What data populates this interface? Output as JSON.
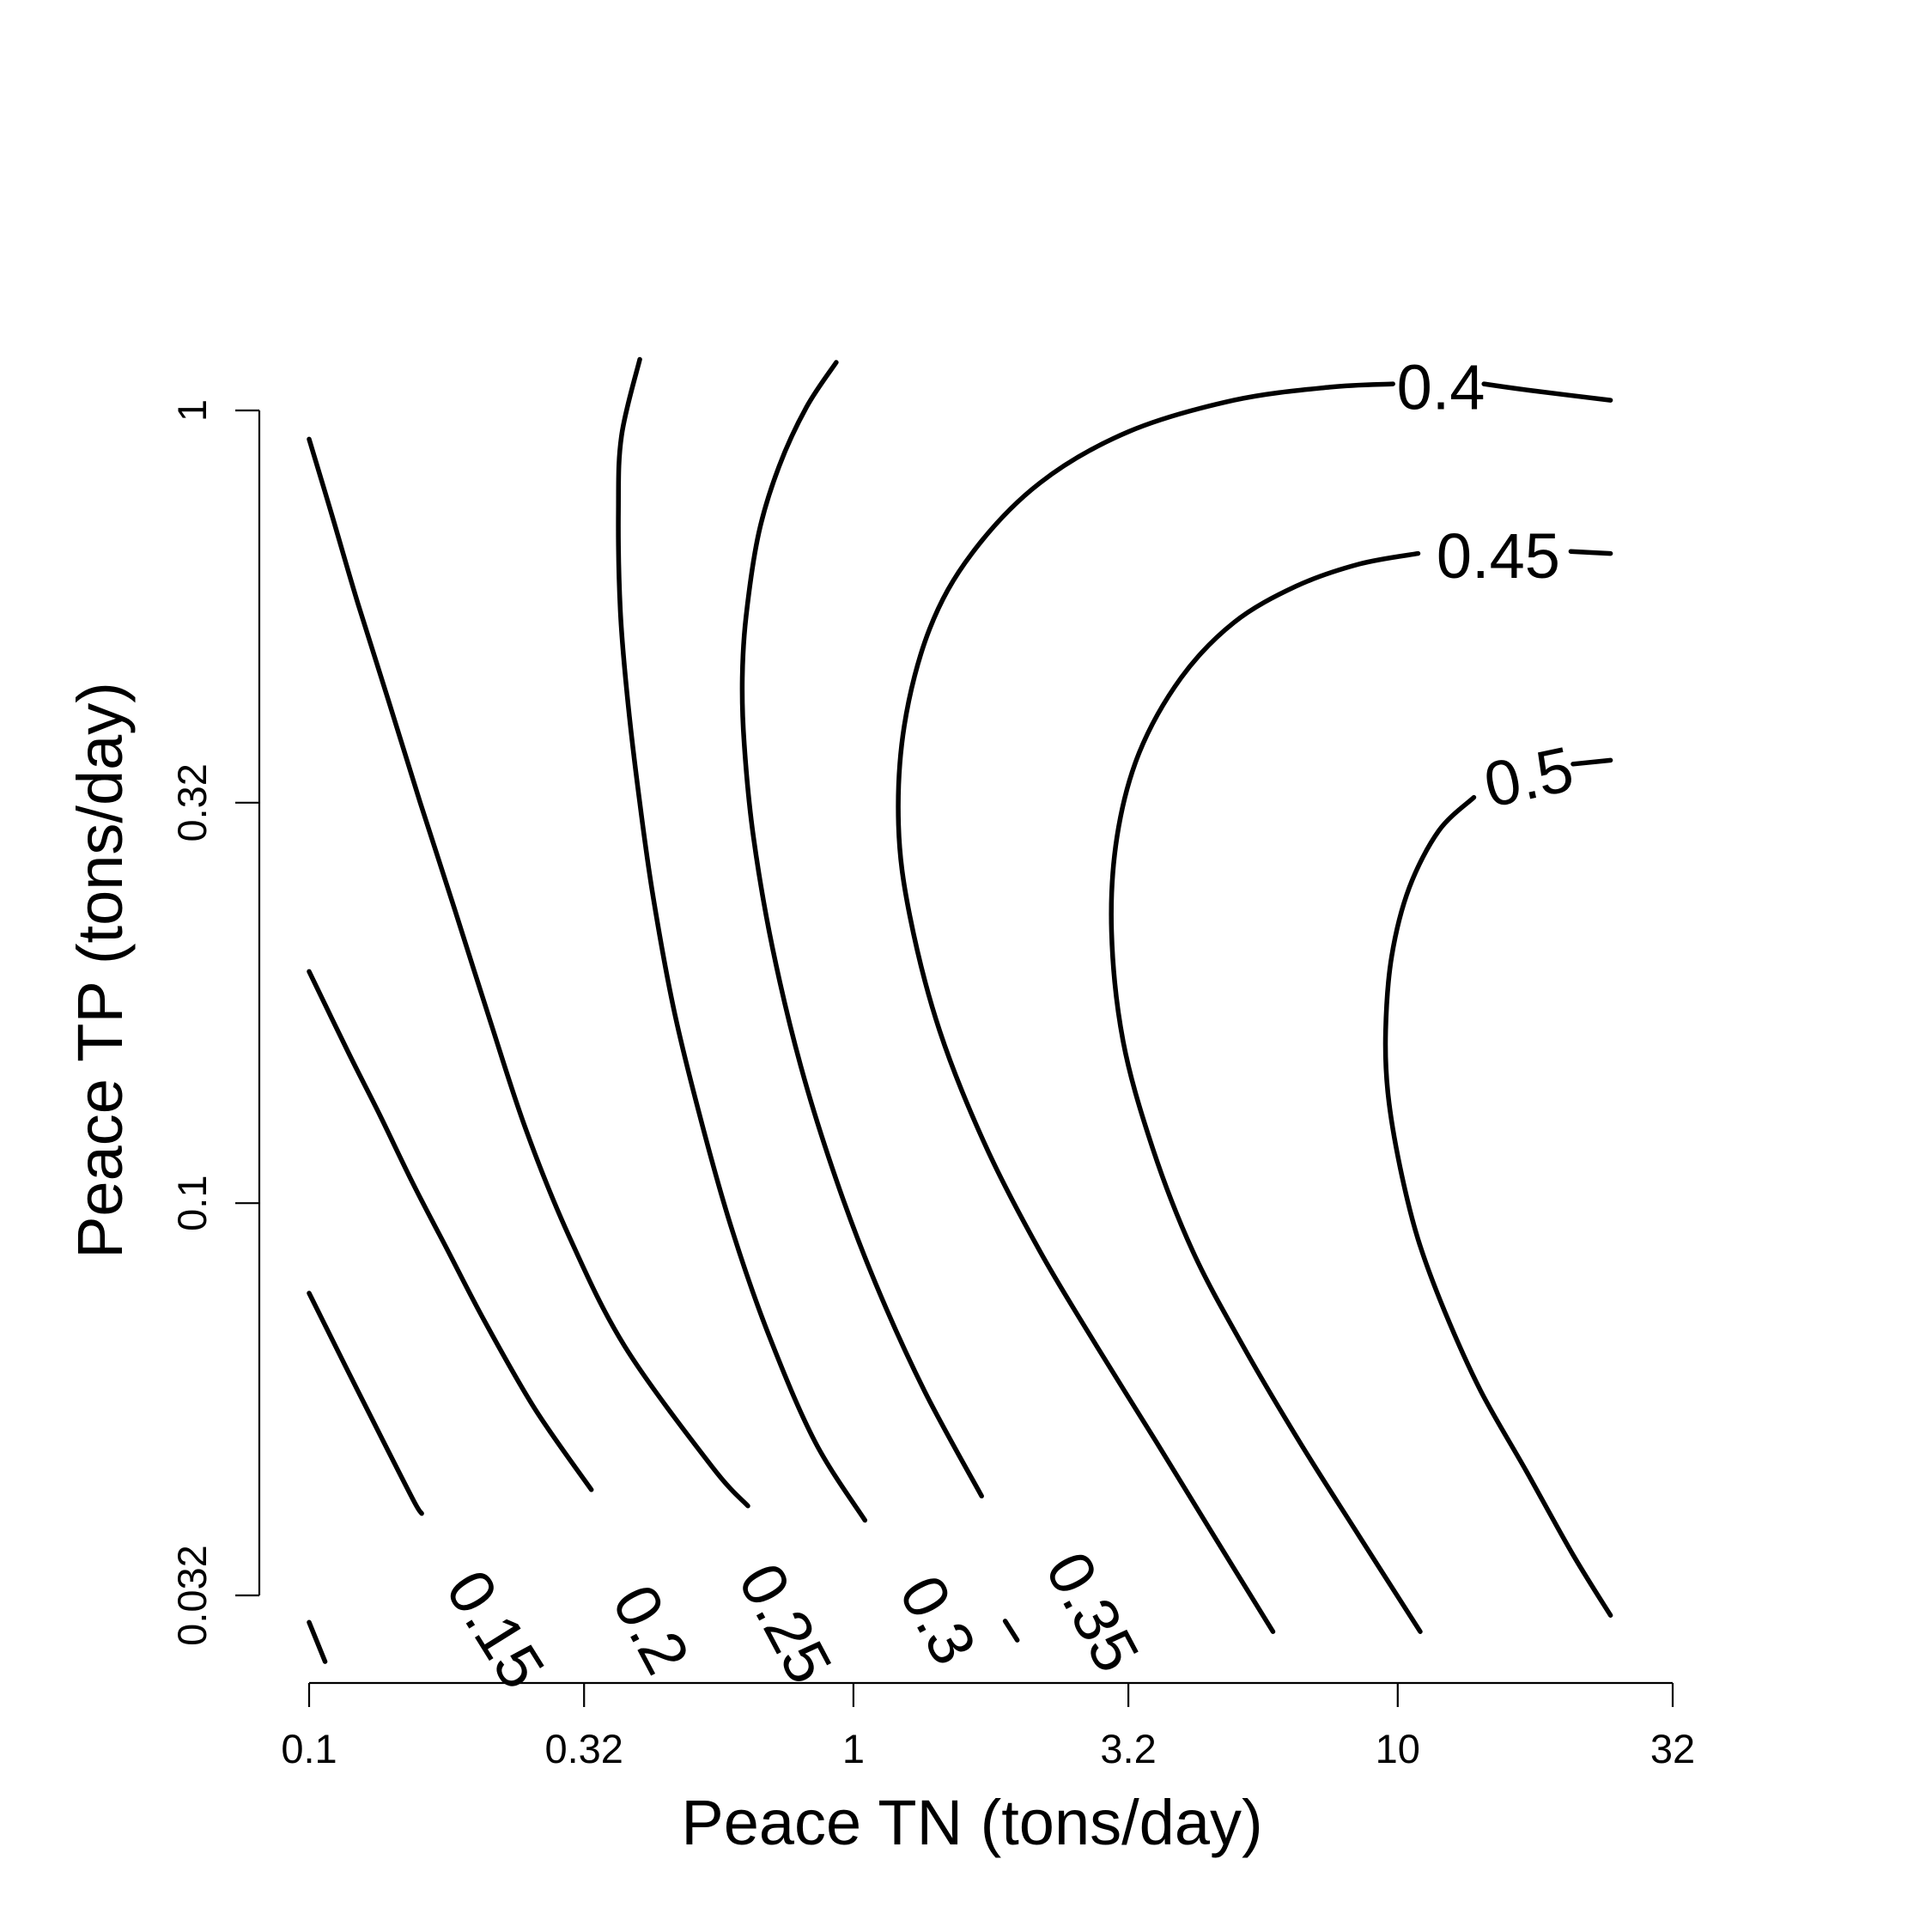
{
  "chart_data": {
    "type": "contour",
    "title": "",
    "xlabel": "Peace TN (tons/day)",
    "ylabel": "Peace TP (tons/day)",
    "x_scale": "log10",
    "y_scale": "log10",
    "xlim": [
      0.1,
      32
    ],
    "ylim": [
      0.032,
      1
    ],
    "x_ticks": [
      {
        "value": 0.1,
        "label": "0.1"
      },
      {
        "value": 0.32,
        "label": "0.32"
      },
      {
        "value": 1,
        "label": "1"
      },
      {
        "value": 3.2,
        "label": "3.2"
      },
      {
        "value": 10,
        "label": "10"
      },
      {
        "value": 32,
        "label": "32"
      }
    ],
    "y_ticks": [
      {
        "value": 0.032,
        "label": "0.032"
      },
      {
        "value": 0.1,
        "label": "0.1"
      },
      {
        "value": 0.32,
        "label": "0.32"
      },
      {
        "value": 1,
        "label": "1"
      }
    ],
    "line_color": "#000000",
    "grid": false,
    "legend": "none",
    "contours": [
      {
        "level": "0.15",
        "points": [
          [
            0.1,
            0.077
          ],
          [
            0.117,
            0.062
          ],
          [
            0.137,
            0.05
          ],
          [
            0.156,
            0.042
          ],
          [
            0.161,
            0.0406
          ]
        ],
        "tail": [
          [
            0.1,
            0.0296
          ],
          [
            0.107,
            0.0264
          ]
        ],
        "label_pos": [
          0.22,
          0.029
        ],
        "label_angle": 58
      },
      {
        "level": "0.2",
        "points": [
          [
            0.1,
            0.196
          ],
          [
            0.118,
            0.155
          ],
          [
            0.135,
            0.129
          ],
          [
            0.155,
            0.106
          ],
          [
            0.18,
            0.087
          ],
          [
            0.21,
            0.071
          ],
          [
            0.26,
            0.055
          ],
          [
            0.33,
            0.0435
          ]
        ],
        "label_pos": [
          0.425,
          0.029
        ],
        "label_angle": 62
      },
      {
        "level": "0.25",
        "points": [
          [
            0.1,
            0.92
          ],
          [
            0.11,
            0.74
          ],
          [
            0.123,
            0.57
          ],
          [
            0.14,
            0.43
          ],
          [
            0.16,
            0.32
          ],
          [
            0.185,
            0.235
          ],
          [
            0.215,
            0.17
          ],
          [
            0.25,
            0.124
          ],
          [
            0.3,
            0.091
          ],
          [
            0.38,
            0.066
          ],
          [
            0.55,
            0.0465
          ],
          [
            0.64,
            0.0415
          ]
        ],
        "label_pos": [
          0.75,
          0.0295
        ],
        "label_angle": 62
      },
      {
        "level": "0.3",
        "points": [
          [
            0.405,
            1.16
          ],
          [
            0.375,
            0.93
          ],
          [
            0.37,
            0.75
          ],
          [
            0.373,
            0.56
          ],
          [
            0.385,
            0.43
          ],
          [
            0.405,
            0.32
          ],
          [
            0.43,
            0.24
          ],
          [
            0.47,
            0.173
          ],
          [
            0.53,
            0.124
          ],
          [
            0.6,
            0.092
          ],
          [
            0.7,
            0.068
          ],
          [
            0.85,
            0.05
          ],
          [
            1.05,
            0.0398
          ]
        ],
        "tail": [
          [
            1.9,
            0.0297
          ],
          [
            2.0,
            0.0281
          ]
        ],
        "label_pos": [
          1.43,
          0.0298
        ],
        "label_angle": 62
      },
      {
        "level": "0.35",
        "points": [
          [
            0.93,
            1.15
          ],
          [
            0.82,
            1.01
          ],
          [
            0.73,
            0.85
          ],
          [
            0.67,
            0.7
          ],
          [
            0.635,
            0.55
          ],
          [
            0.625,
            0.46
          ],
          [
            0.63,
            0.38
          ],
          [
            0.655,
            0.29
          ],
          [
            0.71,
            0.21
          ],
          [
            0.8,
            0.149
          ],
          [
            0.93,
            0.107
          ],
          [
            1.1,
            0.079
          ],
          [
            1.35,
            0.058
          ],
          [
            1.72,
            0.0427
          ]
        ],
        "label_pos": [
          2.75,
          0.0305
        ],
        "label_angle": 62
      },
      {
        "level": "0.4",
        "points": [
          [
            5.9,
            0.0288
          ],
          [
            4.6,
            0.038
          ],
          [
            3.6,
            0.05
          ],
          [
            2.8,
            0.066
          ],
          [
            2.2,
            0.087
          ],
          [
            1.75,
            0.118
          ],
          [
            1.44,
            0.165
          ],
          [
            1.27,
            0.23
          ],
          [
            1.21,
            0.3
          ],
          [
            1.24,
            0.4
          ],
          [
            1.38,
            0.53
          ],
          [
            1.65,
            0.66
          ],
          [
            2.2,
            0.81
          ],
          [
            3.2,
            0.94
          ],
          [
            5.0,
            1.03
          ],
          [
            7.5,
            1.07
          ],
          [
            9.8,
            1.08
          ]
        ],
        "tail": [
          [
            14.4,
            1.08
          ],
          [
            17.5,
            1.06
          ],
          [
            24.6,
            1.03
          ]
        ],
        "label_pos": [
          12.0,
          1.07
        ],
        "label_angle": 0
      },
      {
        "level": "0.45",
        "points": [
          [
            11.0,
            0.0288
          ],
          [
            8.5,
            0.038
          ],
          [
            6.6,
            0.05
          ],
          [
            5.2,
            0.066
          ],
          [
            4.2,
            0.087
          ],
          [
            3.55,
            0.117
          ],
          [
            3.13,
            0.16
          ],
          [
            2.98,
            0.22
          ],
          [
            3.05,
            0.29
          ],
          [
            3.35,
            0.37
          ],
          [
            4.0,
            0.46
          ],
          [
            5.0,
            0.54
          ],
          [
            6.5,
            0.6
          ],
          [
            8.5,
            0.64
          ],
          [
            10.9,
            0.66
          ]
        ],
        "tail": [
          [
            20.8,
            0.664
          ],
          [
            22.5,
            0.662
          ],
          [
            24.6,
            0.66
          ]
        ],
        "label_pos": [
          15.3,
          0.655
        ],
        "label_angle": 0
      },
      {
        "level": "0.5",
        "points": [
          [
            24.6,
            0.0302
          ],
          [
            21.0,
            0.036
          ],
          [
            17.2,
            0.046
          ],
          [
            14.2,
            0.058
          ],
          [
            12.2,
            0.073
          ],
          [
            10.9,
            0.09
          ],
          [
            10.1,
            0.111
          ],
          [
            9.6,
            0.137
          ],
          [
            9.5,
            0.165
          ],
          [
            9.75,
            0.205
          ],
          [
            10.5,
            0.25
          ],
          [
            11.9,
            0.295
          ],
          [
            13.8,
            0.325
          ]
        ],
        "tail": [
          [
            21.0,
            0.358
          ],
          [
            24.6,
            0.362
          ]
        ],
        "label_pos": [
          17.4,
          0.345
        ],
        "label_angle": -12
      }
    ]
  }
}
